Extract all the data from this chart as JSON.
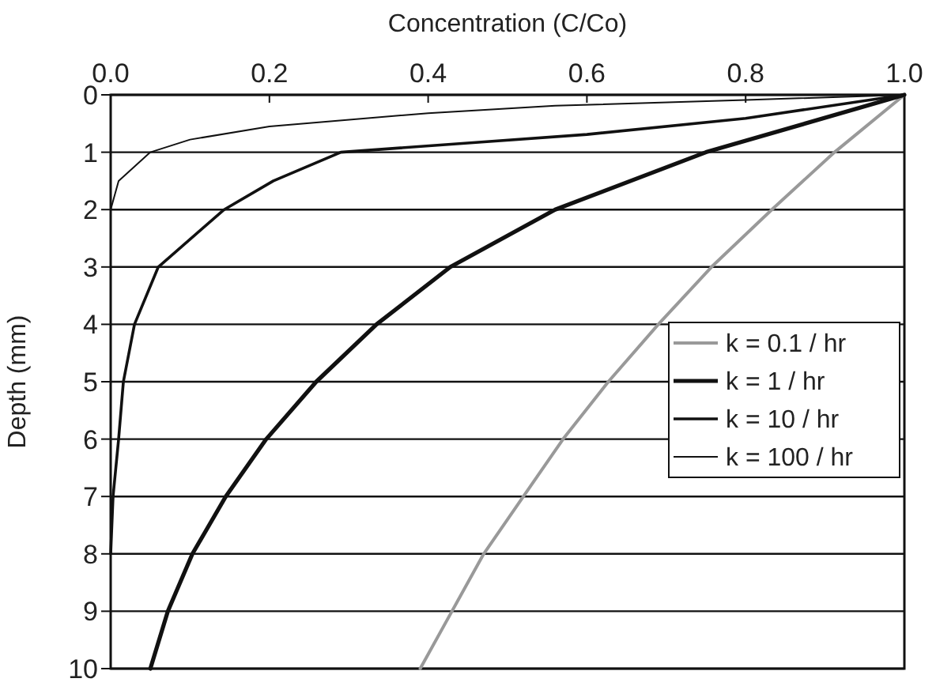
{
  "chart_data": {
    "type": "line",
    "xlabel": "Concentration (C/Co)",
    "ylabel": "Depth (mm)",
    "xlim": [
      0,
      1
    ],
    "xticks": [
      {
        "value": 0,
        "label": "0.0"
      },
      0.2,
      0.4,
      0.6,
      0.8,
      {
        "value": 1,
        "label": "1.0"
      }
    ],
    "ylim": [
      10,
      0
    ],
    "yticks": [
      0,
      1,
      2,
      3,
      4,
      5,
      6,
      7,
      8,
      9,
      10
    ],
    "grid": "y",
    "legend": "right",
    "marker": "none",
    "line_style": "solid",
    "series": [
      {
        "name": "k = 0.1 / hr",
        "color": "#999999",
        "x": [
          1,
          0.912,
          0.833,
          0.757,
          0.69,
          0.627,
          0.57,
          0.52,
          0.47,
          0.43,
          0.39
        ],
        "values": [
          0,
          1,
          2,
          3,
          4,
          5,
          6,
          7,
          8,
          9,
          10
        ]
      },
      {
        "name": "k = 1 / hr",
        "color": "#111111",
        "x": [
          1,
          0.75,
          0.56,
          0.428,
          0.335,
          0.259,
          0.196,
          0.145,
          0.103,
          0.072,
          0.05
        ],
        "values": [
          0,
          1,
          2,
          3,
          4,
          5,
          6,
          7,
          8,
          9,
          10
        ]
      },
      {
        "name": "k = 10 / hr",
        "color": "#111111",
        "x": [
          1,
          0.8,
          0.6,
          0.46,
          0.29,
          0.205,
          0.143,
          0.06,
          0.03,
          0.016,
          0.01,
          0.003,
          0
        ],
        "values": [
          0,
          0.41,
          0.69,
          0.83,
          1,
          1.5,
          2,
          3,
          4,
          5,
          6,
          7,
          8
        ]
      },
      {
        "name": "k = 100 / hr",
        "color": "#111111",
        "x": [
          1,
          0.8,
          0.56,
          0.4,
          0.2,
          0.1,
          0.05,
          0.01,
          0
        ],
        "values": [
          0,
          0.09,
          0.19,
          0.32,
          0.55,
          0.78,
          1,
          1.5,
          2
        ]
      }
    ]
  }
}
